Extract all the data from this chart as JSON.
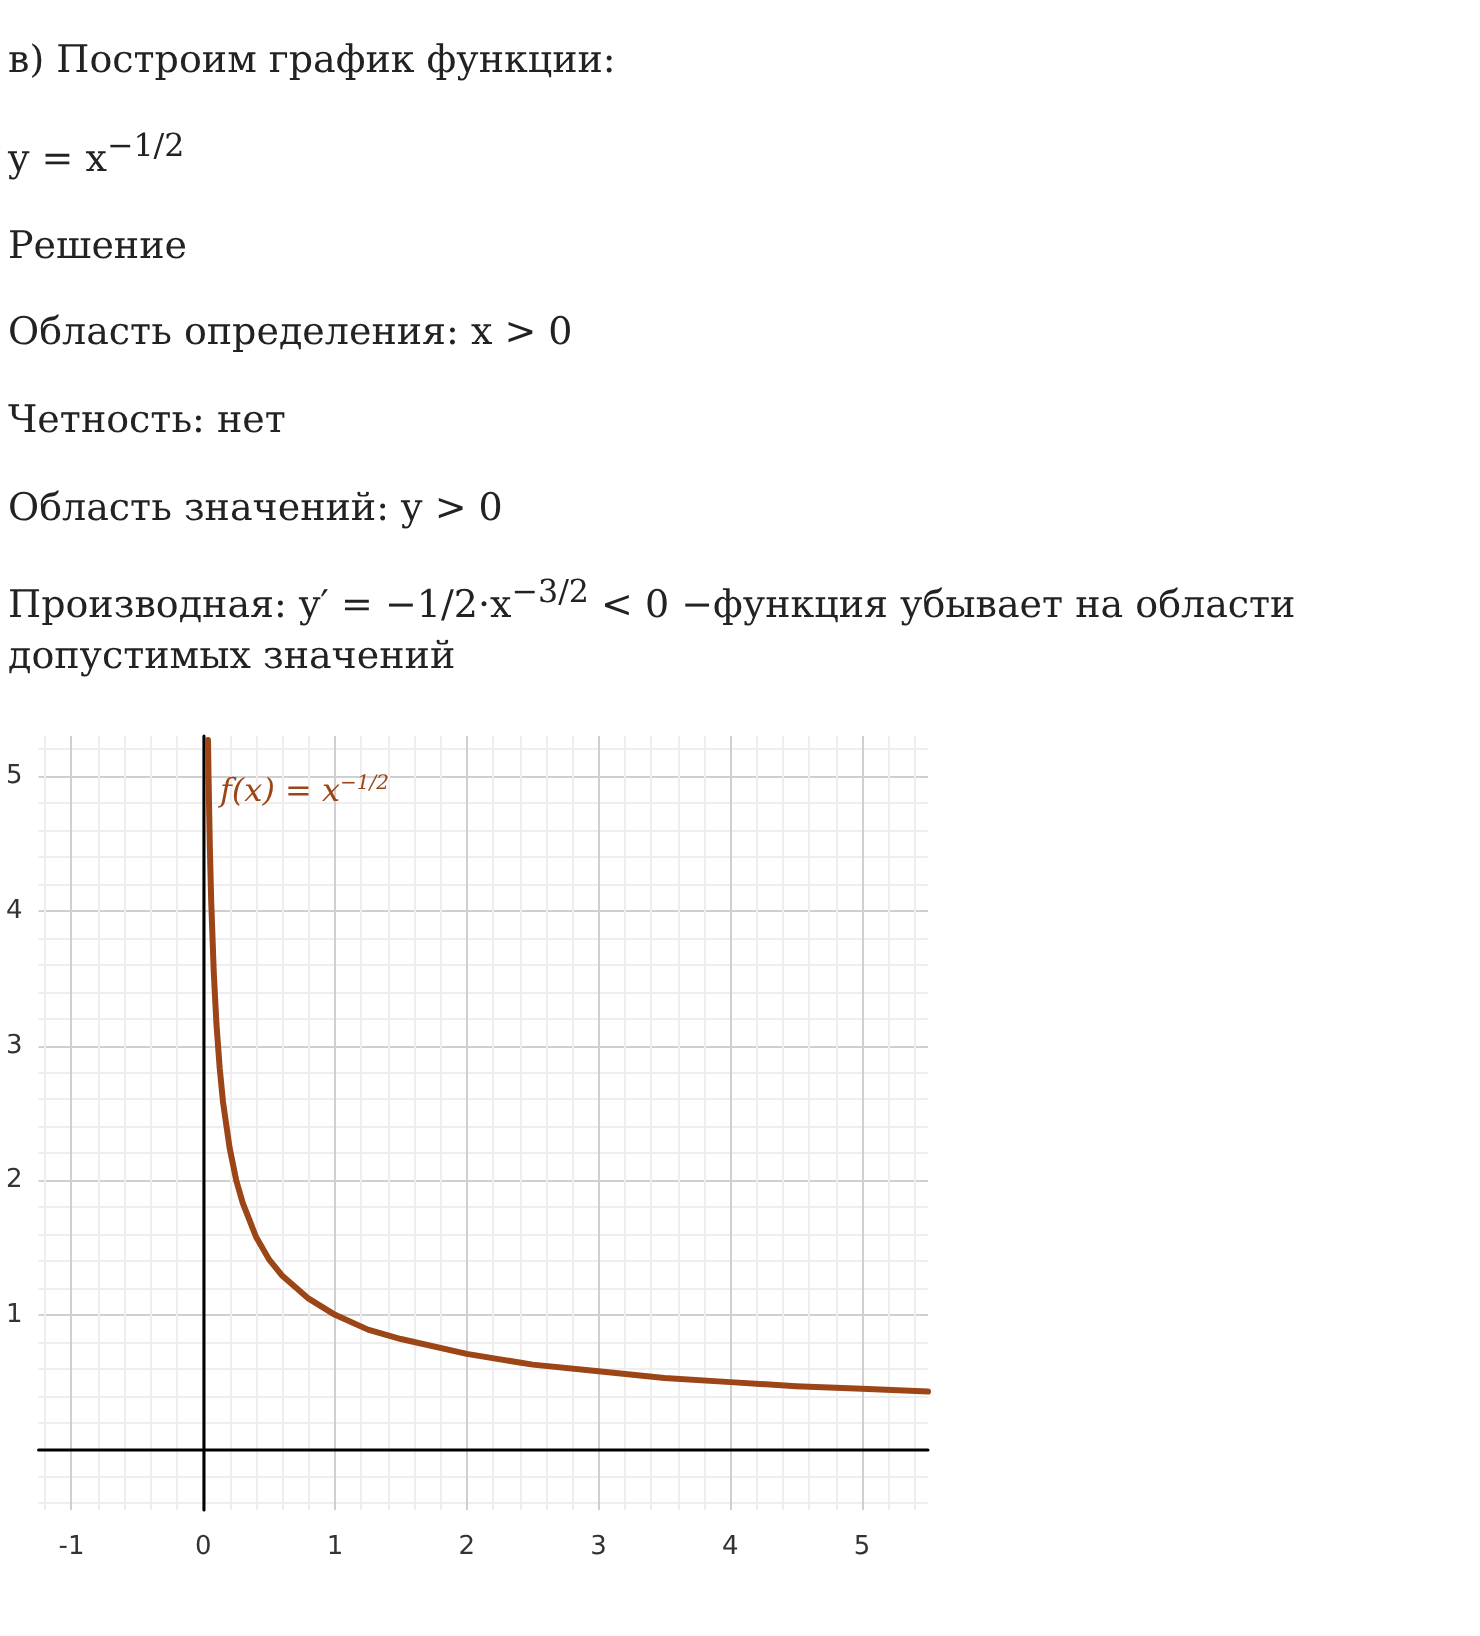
{
  "chart_data": {
    "type": "line",
    "title": "в) Построим график функции:",
    "annotations": [
      "y = x$^{−1/2}$",
      "Решение",
      "Область определения: x > 0",
      "Четность: нет",
      "Область значений: y > 0",
      "Производная: y′ = −1/2·x$^{−3/2}$ < 0 −функция убывает на области допустимых значений"
    ],
    "series": [
      {
        "name": "f(x) = x$^{−1/2}$",
        "color": "#9c4516",
        "x": [
          0.036,
          0.04,
          0.05,
          0.06,
          0.08,
          0.1,
          0.125,
          0.15,
          0.2,
          0.25,
          0.3,
          0.4,
          0.5,
          0.6,
          0.8,
          1,
          1.25,
          1.5,
          2,
          2.5,
          3,
          3.5,
          4,
          4.5,
          5,
          5.5
        ],
        "values": [
          5.27,
          5,
          4.47,
          4.08,
          3.54,
          3.16,
          2.83,
          2.58,
          2.24,
          2,
          1.83,
          1.58,
          1.41,
          1.29,
          1.12,
          1,
          0.89,
          0.82,
          0.71,
          0.63,
          0.58,
          0.53,
          0.5,
          0.47,
          0.45,
          0.43
        ]
      }
    ],
    "xlim": [
      -1.25,
      5.5
    ],
    "xticks": [
      -1,
      0,
      1,
      2,
      3,
      4,
      5
    ],
    "ylim": [
      -0.45,
      5.3
    ],
    "yticks": [
      1,
      2,
      3,
      4,
      5
    ],
    "grid": true,
    "legend": "top left",
    "marker": "none",
    "line_style": "solid"
  }
}
